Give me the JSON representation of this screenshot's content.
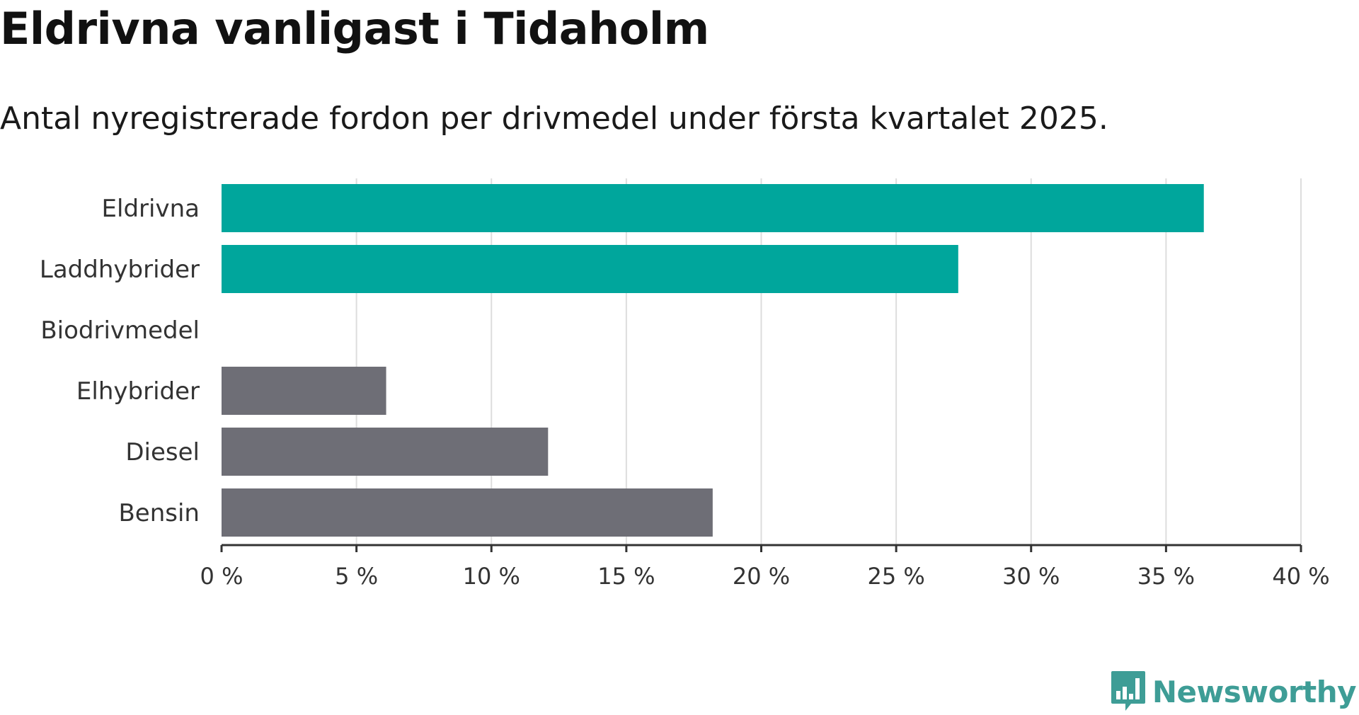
{
  "colors": {
    "highlight": "#00a69c",
    "muted": "#6e6e76",
    "grid": "#dddddd",
    "axis": "#333333",
    "brand": "#3e9d96"
  },
  "brand": {
    "name": "Newsworthy",
    "icon": "bar-chart-speech-bubble-icon"
  },
  "chart_data": {
    "type": "bar",
    "orientation": "horizontal",
    "title": "Eldrivna vanligast i Tidaholm",
    "subtitle": "Antal nyregistrerade fordon per drivmedel under första kvartalet 2025.",
    "categories": [
      "Eldrivna",
      "Laddhybrider",
      "Biodrivmedel",
      "Elhybrider",
      "Diesel",
      "Bensin"
    ],
    "values": [
      36.4,
      27.3,
      0,
      6.1,
      12.1,
      18.2
    ],
    "highlight": [
      true,
      true,
      true,
      false,
      false,
      false
    ],
    "unit": "%",
    "xlim": [
      0,
      40
    ],
    "ticks": [
      0,
      5,
      10,
      15,
      20,
      25,
      30,
      35,
      40
    ],
    "tick_labels": [
      "0 %",
      "5 %",
      "10 %",
      "15 %",
      "20 %",
      "25 %",
      "30 %",
      "35 %",
      "40 %"
    ],
    "grid": true,
    "legend": "none"
  }
}
